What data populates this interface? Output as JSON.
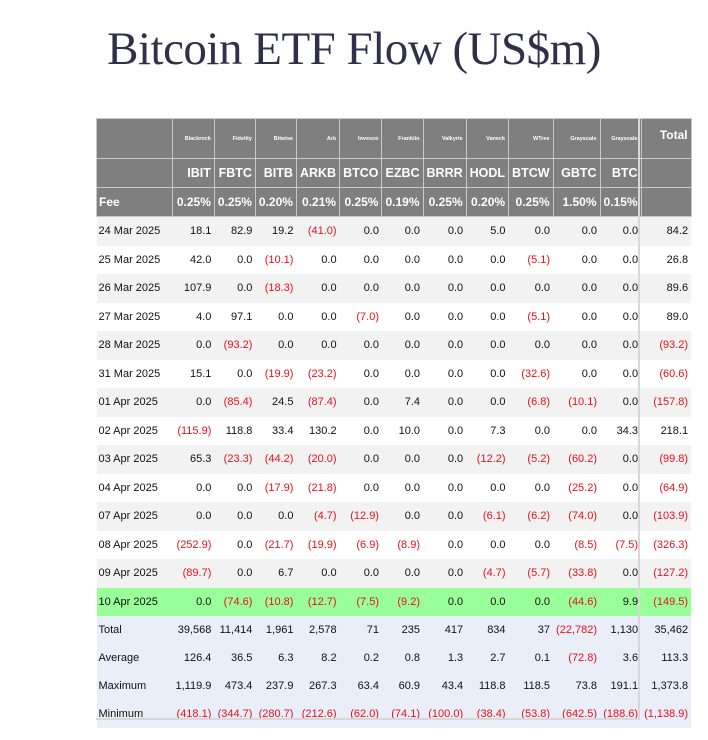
{
  "title": "Bitcoin ETF Flow (US$m)",
  "table": {
    "issuers": [
      "Blackrock",
      "Fidelity",
      "Bitwise",
      "Ark",
      "Invesco",
      "Franklin",
      "Valkyrie",
      "Vaneck",
      "WTree",
      "Grayscale",
      "Grayscale"
    ],
    "total_header": "Total",
    "tickers": [
      "IBIT",
      "FBTC",
      "BITB",
      "ARKB",
      "BTCO",
      "EZBC",
      "BRRR",
      "HODL",
      "BTCW",
      "GBTC",
      "BTC"
    ],
    "fee_label": "Fee",
    "fees": [
      "0.25%",
      "0.25%",
      "0.20%",
      "0.21%",
      "0.25%",
      "0.19%",
      "0.25%",
      "0.20%",
      "0.25%",
      "1.50%",
      "0.15%"
    ],
    "highlight_color": "#99ff99",
    "negative_color": "#e8101a",
    "rows": [
      {
        "date": "24 Mar 2025",
        "values": [
          "18.1",
          "82.9",
          "19.2",
          "(41.0)",
          "0.0",
          "0.0",
          "0.0",
          "5.0",
          "0.0",
          "0.0",
          "0.0"
        ],
        "total": "84.2"
      },
      {
        "date": "25 Mar 2025",
        "values": [
          "42.0",
          "0.0",
          "(10.1)",
          "0.0",
          "0.0",
          "0.0",
          "0.0",
          "0.0",
          "(5.1)",
          "0.0",
          "0.0"
        ],
        "total": "26.8"
      },
      {
        "date": "26 Mar 2025",
        "values": [
          "107.9",
          "0.0",
          "(18.3)",
          "0.0",
          "0.0",
          "0.0",
          "0.0",
          "0.0",
          "0.0",
          "0.0",
          "0.0"
        ],
        "total": "89.6"
      },
      {
        "date": "27 Mar 2025",
        "values": [
          "4.0",
          "97.1",
          "0.0",
          "0.0",
          "(7.0)",
          "0.0",
          "0.0",
          "0.0",
          "(5.1)",
          "0.0",
          "0.0"
        ],
        "total": "89.0"
      },
      {
        "date": "28 Mar 2025",
        "values": [
          "0.0",
          "(93.2)",
          "0.0",
          "0.0",
          "0.0",
          "0.0",
          "0.0",
          "0.0",
          "0.0",
          "0.0",
          "0.0"
        ],
        "total": "(93.2)"
      },
      {
        "date": "31 Mar 2025",
        "values": [
          "15.1",
          "0.0",
          "(19.9)",
          "(23.2)",
          "0.0",
          "0.0",
          "0.0",
          "0.0",
          "(32.6)",
          "0.0",
          "0.0"
        ],
        "total": "(60.6)"
      },
      {
        "date": "01 Apr 2025",
        "values": [
          "0.0",
          "(85.4)",
          "24.5",
          "(87.4)",
          "0.0",
          "7.4",
          "0.0",
          "0.0",
          "(6.8)",
          "(10.1)",
          "0.0"
        ],
        "total": "(157.8)"
      },
      {
        "date": "02 Apr 2025",
        "values": [
          "(115.9)",
          "118.8",
          "33.4",
          "130.2",
          "0.0",
          "10.0",
          "0.0",
          "7.3",
          "0.0",
          "0.0",
          "34.3"
        ],
        "total": "218.1"
      },
      {
        "date": "03 Apr 2025",
        "values": [
          "65.3",
          "(23.3)",
          "(44.2)",
          "(20.0)",
          "0.0",
          "0.0",
          "0.0",
          "(12.2)",
          "(5.2)",
          "(60.2)",
          "0.0"
        ],
        "total": "(99.8)"
      },
      {
        "date": "04 Apr 2025",
        "values": [
          "0.0",
          "0.0",
          "(17.9)",
          "(21.8)",
          "0.0",
          "0.0",
          "0.0",
          "0.0",
          "0.0",
          "(25.2)",
          "0.0"
        ],
        "total": "(64.9)"
      },
      {
        "date": "07 Apr 2025",
        "values": [
          "0.0",
          "0.0",
          "0.0",
          "(4.7)",
          "(12.9)",
          "0.0",
          "0.0",
          "(6.1)",
          "(6.2)",
          "(74.0)",
          "0.0"
        ],
        "total": "(103.9)"
      },
      {
        "date": "08 Apr 2025",
        "values": [
          "(252.9)",
          "0.0",
          "(21.7)",
          "(19.9)",
          "(6.9)",
          "(8.9)",
          "0.0",
          "0.0",
          "0.0",
          "(8.5)",
          "(7.5)"
        ],
        "total": "(326.3)"
      },
      {
        "date": "09 Apr 2025",
        "values": [
          "(89.7)",
          "0.0",
          "6.7",
          "0.0",
          "0.0",
          "0.0",
          "0.0",
          "(4.7)",
          "(5.7)",
          "(33.8)",
          "0.0"
        ],
        "total": "(127.2)"
      },
      {
        "date": "10 Apr 2025",
        "values": [
          "0.0",
          "(74.6)",
          "(10.8)",
          "(12.7)",
          "(7.5)",
          "(9.2)",
          "0.0",
          "0.0",
          "0.0",
          "(44.6)",
          "9.9"
        ],
        "total": "(149.5)",
        "highlight": true
      }
    ],
    "summary": [
      {
        "label": "Total",
        "values": [
          "39,568",
          "11,414",
          "1,961",
          "2,578",
          "71",
          "235",
          "417",
          "834",
          "37",
          "(22,782)",
          "1,130"
        ],
        "total": "35,462"
      },
      {
        "label": "Average",
        "values": [
          "126.4",
          "36.5",
          "6.3",
          "8.2",
          "0.2",
          "0.8",
          "1.3",
          "2.7",
          "0.1",
          "(72.8)",
          "3.6"
        ],
        "total": "113.3"
      },
      {
        "label": "Maximum",
        "values": [
          "1,119.9",
          "473.4",
          "237.9",
          "267.3",
          "63.4",
          "60.9",
          "43.4",
          "118.8",
          "118.5",
          "73.8",
          "191.1"
        ],
        "total": "1,373.8"
      },
      {
        "label": "Minimum",
        "values": [
          "(418.1)",
          "(344.7)",
          "(280.7)",
          "(212.6)",
          "(62.0)",
          "(74.1)",
          "(100.0)",
          "(38.4)",
          "(53.8)",
          "(642.5)",
          "(188.6)"
        ],
        "total": "(1,138.9)"
      }
    ]
  }
}
